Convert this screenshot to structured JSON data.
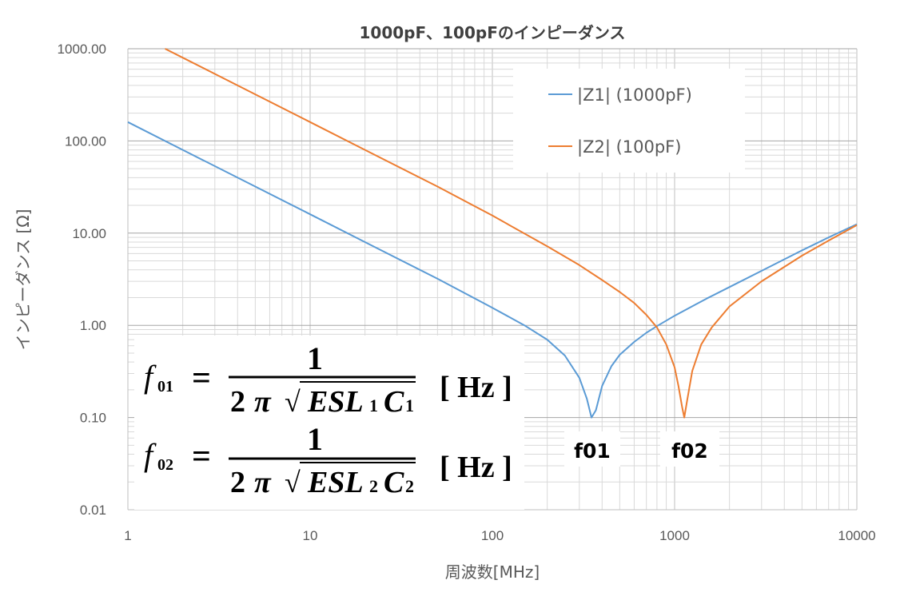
{
  "chart_data": {
    "type": "line",
    "title": "1000pF、100pFのインピーダンス",
    "xlabel": "周波数[MHz]",
    "ylabel": "インピーダンス [Ω]",
    "xscale": "log",
    "yscale": "log",
    "xlim": [
      1,
      10000
    ],
    "ylim": [
      0.01,
      1000
    ],
    "xticks": [
      "1",
      "10",
      "100",
      "1000",
      "10000"
    ],
    "yticks": [
      "0.01",
      "0.10",
      "1.00",
      "10.00",
      "100.00",
      "1000.00"
    ],
    "grid": true,
    "legend": "top-right",
    "series": [
      {
        "name": "|Z1| (1000pF)",
        "color": "#5B9BD5",
        "x": [
          1,
          2,
          5,
          10,
          20,
          50,
          100,
          150,
          200,
          250,
          300,
          330,
          350,
          370,
          400,
          450,
          500,
          600,
          700,
          800,
          1000,
          1500,
          2000,
          3000,
          5000,
          7000,
          10000
        ],
        "y": [
          160,
          80,
          32,
          16,
          8,
          3.2,
          1.55,
          1.0,
          0.7,
          0.47,
          0.27,
          0.16,
          0.1,
          0.12,
          0.22,
          0.36,
          0.48,
          0.66,
          0.83,
          0.98,
          1.27,
          1.95,
          2.6,
          3.9,
          6.5,
          9.0,
          12.5
        ]
      },
      {
        "name": "|Z2| (100pF)",
        "color": "#ED7D31",
        "x": [
          1.6,
          2,
          5,
          10,
          20,
          50,
          100,
          200,
          300,
          400,
          500,
          600,
          700,
          800,
          900,
          1000,
          1050,
          1100,
          1130,
          1170,
          1250,
          1400,
          1600,
          2000,
          3000,
          5000,
          7000,
          10000
        ],
        "y": [
          1000,
          800,
          320,
          160,
          80,
          32,
          15.5,
          7.2,
          4.5,
          3.1,
          2.3,
          1.75,
          1.3,
          0.95,
          0.62,
          0.35,
          0.22,
          0.13,
          0.1,
          0.15,
          0.32,
          0.62,
          0.95,
          1.6,
          3.0,
          5.7,
          8.3,
          12.2
        ]
      }
    ],
    "annotations": [
      {
        "text": "f01",
        "x": 350
      },
      {
        "text": "f02",
        "x": 1130
      }
    ]
  },
  "formula1": {
    "f": "f",
    "sub": "01",
    "eq": "=",
    "num": "1",
    "two": "2",
    "pi": "π",
    "radical": "√",
    "esl": "ESL",
    "esl_sub": "1",
    "c": "C",
    "c_sub": "1",
    "unit": "[ Hz ]"
  },
  "formula2": {
    "f": "f",
    "sub": "02",
    "eq": "=",
    "num": "1",
    "two": "2",
    "pi": "π",
    "radical": "√",
    "esl": "ESL",
    "esl_sub": "2",
    "c": "C",
    "c_sub": "2",
    "unit": "[ Hz ]"
  }
}
